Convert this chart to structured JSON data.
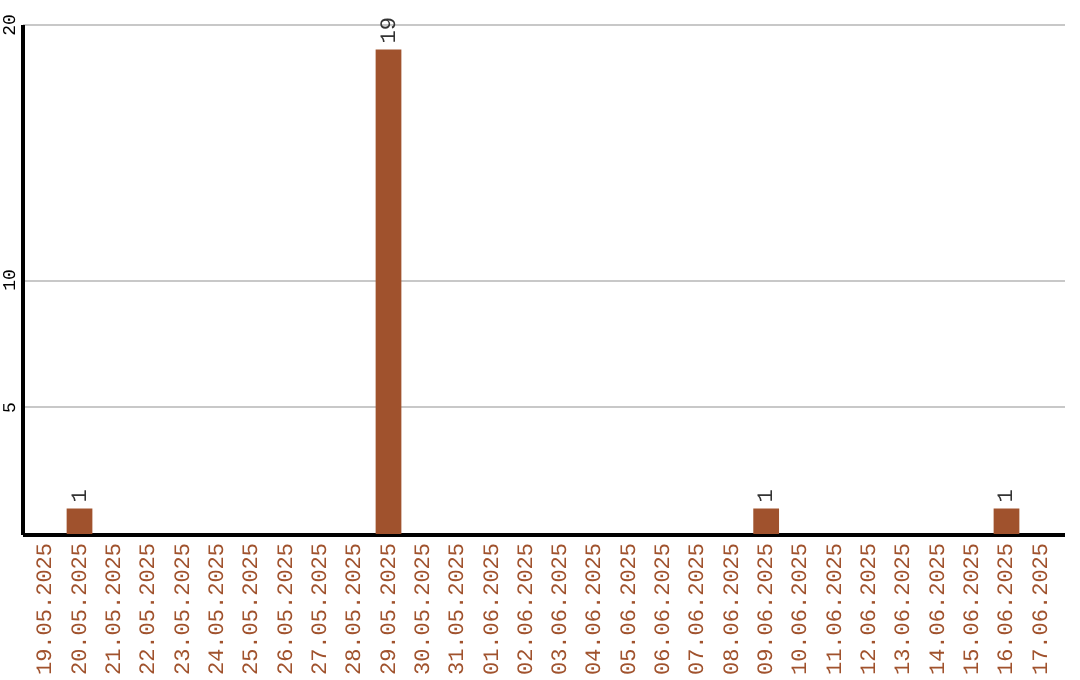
{
  "chart_data": {
    "type": "bar",
    "categories": [
      "19.05.2025",
      "20.05.2025",
      "21.05.2025",
      "22.05.2025",
      "23.05.2025",
      "24.05.2025",
      "25.05.2025",
      "26.05.2025",
      "27.05.2025",
      "28.05.2025",
      "29.05.2025",
      "30.05.2025",
      "31.05.2025",
      "01.06.2025",
      "02.06.2025",
      "03.06.2025",
      "04.06.2025",
      "05.06.2025",
      "06.06.2025",
      "07.06.2025",
      "08.06.2025",
      "09.06.2025",
      "10.06.2025",
      "11.06.2025",
      "12.06.2025",
      "13.06.2025",
      "14.06.2025",
      "15.06.2025",
      "16.06.2025",
      "17.06.2025"
    ],
    "values": [
      0,
      1,
      0,
      0,
      0,
      0,
      0,
      0,
      0,
      0,
      19,
      0,
      0,
      0,
      0,
      0,
      0,
      0,
      0,
      0,
      0,
      1,
      0,
      0,
      0,
      0,
      0,
      0,
      1,
      0
    ],
    "value_labels": [
      null,
      "1",
      null,
      null,
      null,
      null,
      null,
      null,
      null,
      null,
      "19",
      null,
      null,
      null,
      null,
      null,
      null,
      null,
      null,
      null,
      null,
      "1",
      null,
      null,
      null,
      null,
      null,
      null,
      "1",
      null
    ],
    "color": "#a0522d",
    "ylim": [
      0,
      20
    ],
    "yticks": [
      5,
      10,
      20
    ],
    "grid": "y"
  }
}
